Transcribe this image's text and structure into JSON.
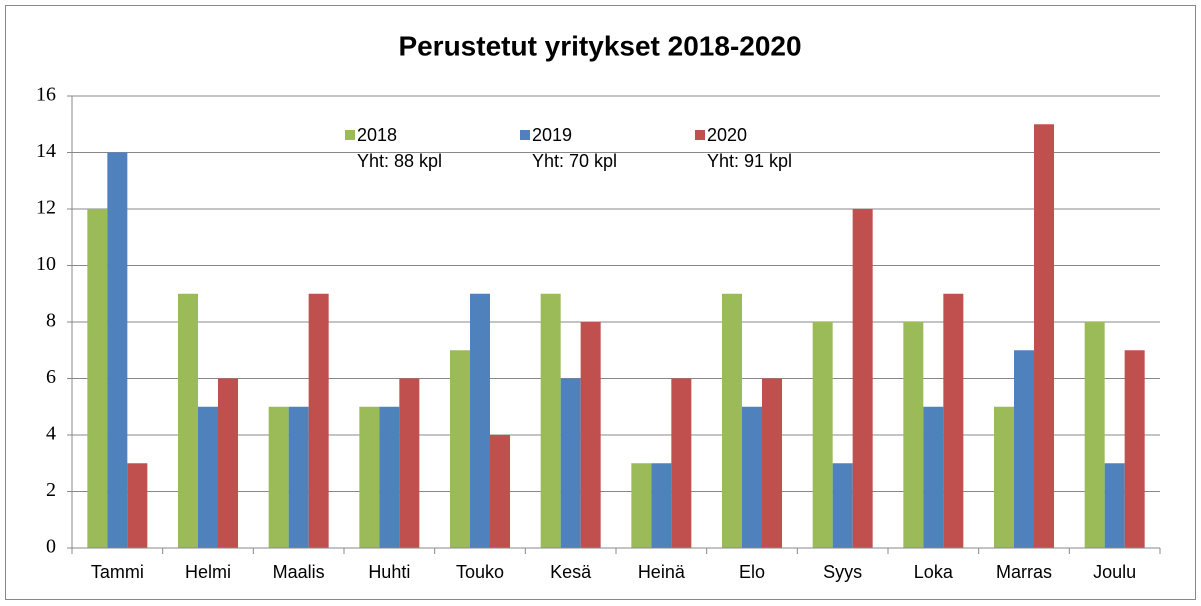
{
  "chart_data": {
    "type": "bar",
    "title": "Perustetut yritykset 2018-2020",
    "categories": [
      "Tammi",
      "Helmi",
      "Maalis",
      "Huhti",
      "Touko",
      "Kesä",
      "Heinä",
      "Elo",
      "Syys",
      "Loka",
      "Marras",
      "Joulu"
    ],
    "series": [
      {
        "name": "2018",
        "legend_note": "Yht: 88 kpl",
        "color": "#9bbb59",
        "values": [
          12,
          9,
          5,
          5,
          7,
          9,
          3,
          9,
          8,
          8,
          5,
          8
        ]
      },
      {
        "name": "2019",
        "legend_note": "Yht: 70 kpl",
        "color": "#4f81bd",
        "values": [
          14,
          5,
          5,
          5,
          9,
          6,
          3,
          5,
          3,
          5,
          7,
          3
        ]
      },
      {
        "name": "2020",
        "legend_note": "Yht: 91 kpl",
        "color": "#c0504d",
        "values": [
          3,
          6,
          9,
          6,
          4,
          8,
          6,
          6,
          12,
          9,
          15,
          7
        ]
      }
    ],
    "ylim": [
      0,
      16
    ],
    "yticks": [
      0,
      2,
      4,
      6,
      8,
      10,
      12,
      14,
      16
    ],
    "grid": true,
    "legend": "top"
  }
}
